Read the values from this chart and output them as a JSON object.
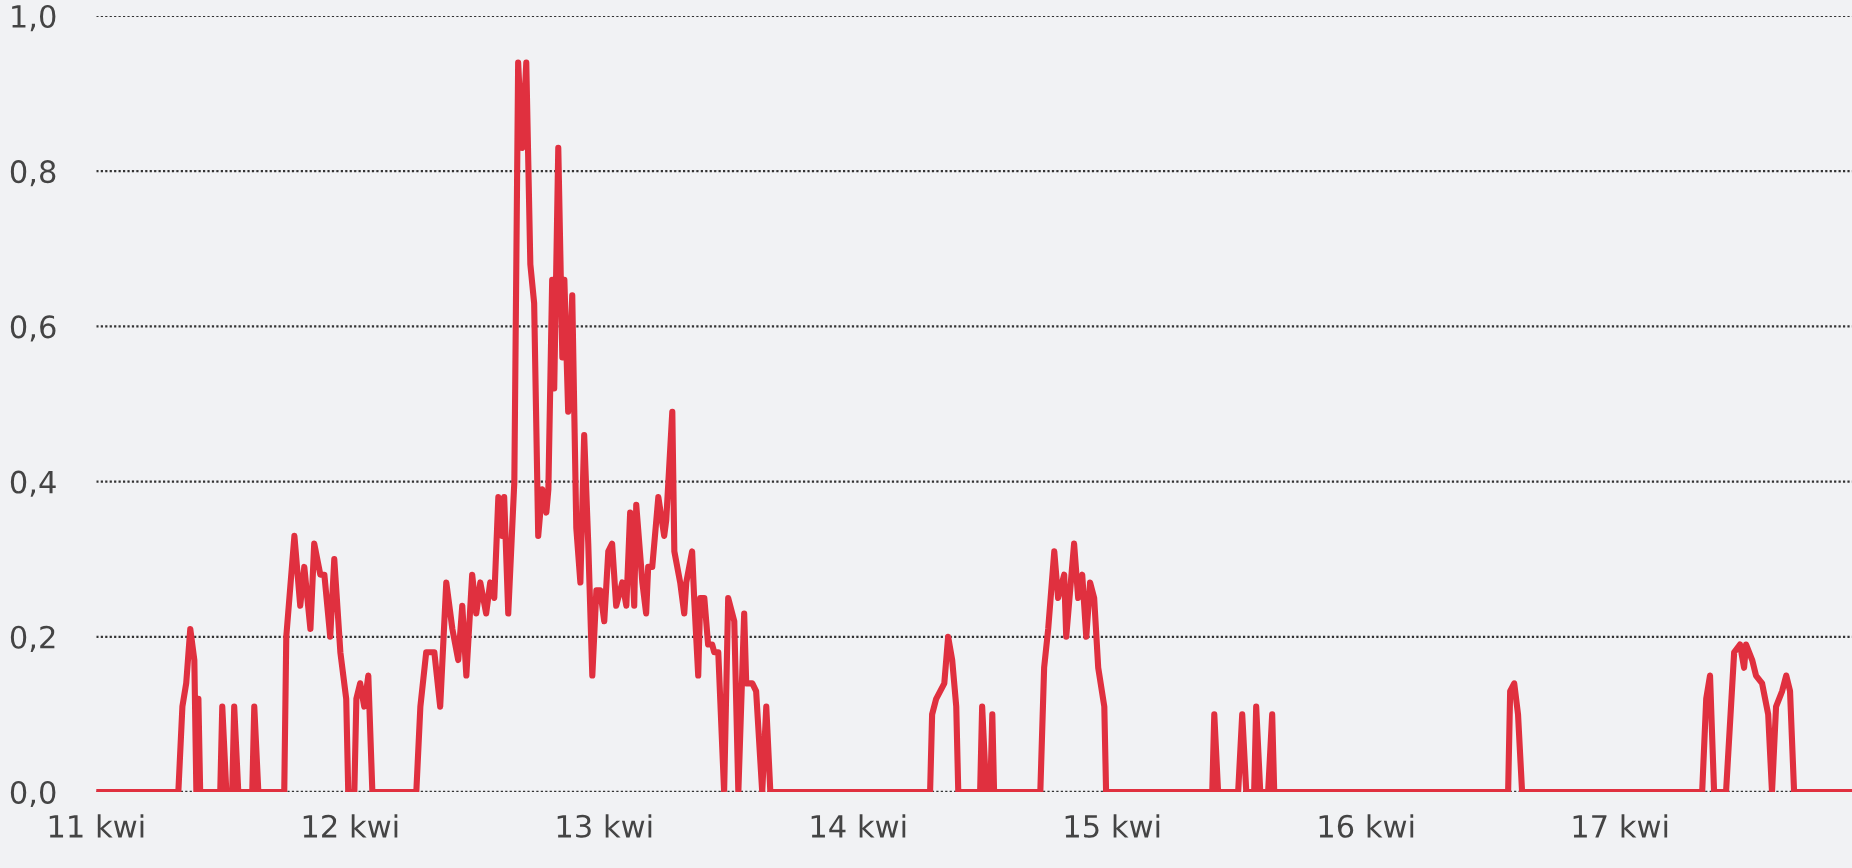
{
  "chart_data": {
    "type": "line",
    "xlim": [
      11,
      17.913
    ],
    "ylim": [
      0,
      1.0
    ],
    "xticks": [
      {
        "value": 11,
        "label": "11 kwi"
      },
      {
        "value": 12,
        "label": "12 kwi"
      },
      {
        "value": 13,
        "label": "13 kwi"
      },
      {
        "value": 14,
        "label": "14 kwi"
      },
      {
        "value": 15,
        "label": "15 kwi"
      },
      {
        "value": 16,
        "label": "16 kwi"
      },
      {
        "value": 17,
        "label": "17 kwi"
      }
    ],
    "yticks": [
      {
        "value": 0,
        "label": "0,0"
      },
      {
        "value": 0.2,
        "label": "0,2"
      },
      {
        "value": 0.4,
        "label": "0,4"
      },
      {
        "value": 0.6,
        "label": "0,6"
      },
      {
        "value": 0.8,
        "label": "0,8"
      },
      {
        "value": 1.0,
        "label": "1,0"
      }
    ],
    "grid": "y",
    "legend": false,
    "marker": "none",
    "line_style": "solid",
    "series": [
      {
        "color": "#e0303f",
        "x": [
          11.0,
          11.323,
          11.339,
          11.354,
          11.37,
          11.386,
          11.394,
          11.402,
          11.409,
          11.488,
          11.496,
          11.512,
          11.535,
          11.543,
          11.559,
          11.614,
          11.622,
          11.638,
          11.74,
          11.748,
          11.78,
          11.803,
          11.819,
          11.843,
          11.858,
          11.882,
          11.898,
          11.921,
          11.937,
          11.961,
          11.984,
          11.992,
          12.016,
          12.024,
          12.039,
          12.055,
          12.071,
          12.087,
          12.252,
          12.26,
          12.276,
          12.299,
          12.331,
          12.354,
          12.378,
          12.402,
          12.425,
          12.441,
          12.457,
          12.48,
          12.496,
          12.512,
          12.535,
          12.551,
          12.567,
          12.583,
          12.598,
          12.606,
          12.622,
          12.646,
          12.661,
          12.677,
          12.693,
          12.709,
          12.724,
          12.74,
          12.756,
          12.772,
          12.78,
          12.795,
          12.803,
          12.819,
          12.835,
          12.843,
          12.858,
          12.874,
          12.89,
          12.906,
          12.921,
          12.937,
          12.953,
          12.969,
          12.984,
          13.0,
          13.016,
          13.031,
          13.047,
          13.071,
          13.087,
          13.102,
          13.118,
          13.126,
          13.15,
          13.165,
          13.173,
          13.189,
          13.213,
          13.236,
          13.244,
          13.268,
          13.276,
          13.299,
          13.315,
          13.323,
          13.346,
          13.354,
          13.37,
          13.378,
          13.394,
          13.409,
          13.425,
          13.433,
          13.449,
          13.472,
          13.488,
          13.512,
          13.528,
          13.551,
          13.559,
          13.583,
          13.598,
          13.622,
          13.638,
          13.654,
          14.283,
          14.291,
          14.307,
          14.339,
          14.354,
          14.37,
          14.386,
          14.394,
          14.48,
          14.488,
          14.504,
          14.52,
          14.528,
          14.535,
          14.717,
          14.732,
          14.748,
          14.772,
          14.787,
          14.811,
          14.819,
          14.85,
          14.866,
          14.882,
          14.898,
          14.913,
          14.929,
          14.945,
          14.969,
          14.976,
          15.394,
          15.402,
          15.417,
          15.496,
          15.512,
          15.528,
          15.559,
          15.567,
          15.583,
          15.614,
          15.63,
          15.638,
          16.559,
          16.567,
          16.583,
          16.598,
          16.614,
          17.323,
          17.339,
          17.354,
          17.37,
          17.417,
          17.449,
          17.472,
          17.488,
          17.496,
          17.52,
          17.535,
          17.559,
          17.583,
          17.598,
          17.614,
          17.638,
          17.654,
          17.669,
          17.685,
          17.913
        ],
        "values": [
          0,
          0,
          0.11,
          0.14,
          0.21,
          0.17,
          0,
          0.12,
          0,
          0,
          0.11,
          0,
          0,
          0.11,
          0,
          0,
          0.11,
          0,
          0,
          0.2,
          0.33,
          0.24,
          0.29,
          0.21,
          0.32,
          0.28,
          0.28,
          0.2,
          0.3,
          0.18,
          0.12,
          0,
          0,
          0.12,
          0.14,
          0.11,
          0.15,
          0,
          0,
          0,
          0.11,
          0.18,
          0.18,
          0.11,
          0.27,
          0.21,
          0.17,
          0.24,
          0.15,
          0.28,
          0.23,
          0.27,
          0.23,
          0.27,
          0.25,
          0.38,
          0.33,
          0.38,
          0.23,
          0.4,
          0.94,
          0.83,
          0.94,
          0.68,
          0.63,
          0.33,
          0.39,
          0.36,
          0.39,
          0.66,
          0.52,
          0.83,
          0.56,
          0.66,
          0.49,
          0.64,
          0.34,
          0.27,
          0.46,
          0.32,
          0.15,
          0.26,
          0.26,
          0.22,
          0.31,
          0.32,
          0.24,
          0.27,
          0.24,
          0.36,
          0.24,
          0.37,
          0.27,
          0.23,
          0.29,
          0.29,
          0.38,
          0.33,
          0.35,
          0.49,
          0.31,
          0.27,
          0.23,
          0.27,
          0.31,
          0.25,
          0.15,
          0.25,
          0.25,
          0.19,
          0.19,
          0.18,
          0.18,
          0,
          0.25,
          0.22,
          0,
          0.23,
          0.14,
          0.14,
          0.13,
          0,
          0.11,
          0,
          0,
          0.1,
          0.12,
          0.14,
          0.2,
          0.17,
          0.11,
          0,
          0,
          0.11,
          0,
          0,
          0.1,
          0,
          0,
          0.16,
          0.21,
          0.31,
          0.25,
          0.28,
          0.2,
          0.32,
          0.25,
          0.28,
          0.2,
          0.27,
          0.25,
          0.16,
          0.11,
          0,
          0,
          0.1,
          0,
          0,
          0.1,
          0,
          0,
          0.11,
          0,
          0,
          0.1,
          0,
          0,
          0.13,
          0.14,
          0.1,
          0,
          0,
          0.12,
          0.15,
          0,
          0,
          0.18,
          0.19,
          0.16,
          0.19,
          0.17,
          0.15,
          0.14,
          0.1,
          0,
          0.11,
          0.13,
          0.15,
          0.13,
          0,
          0
        ]
      }
    ]
  }
}
